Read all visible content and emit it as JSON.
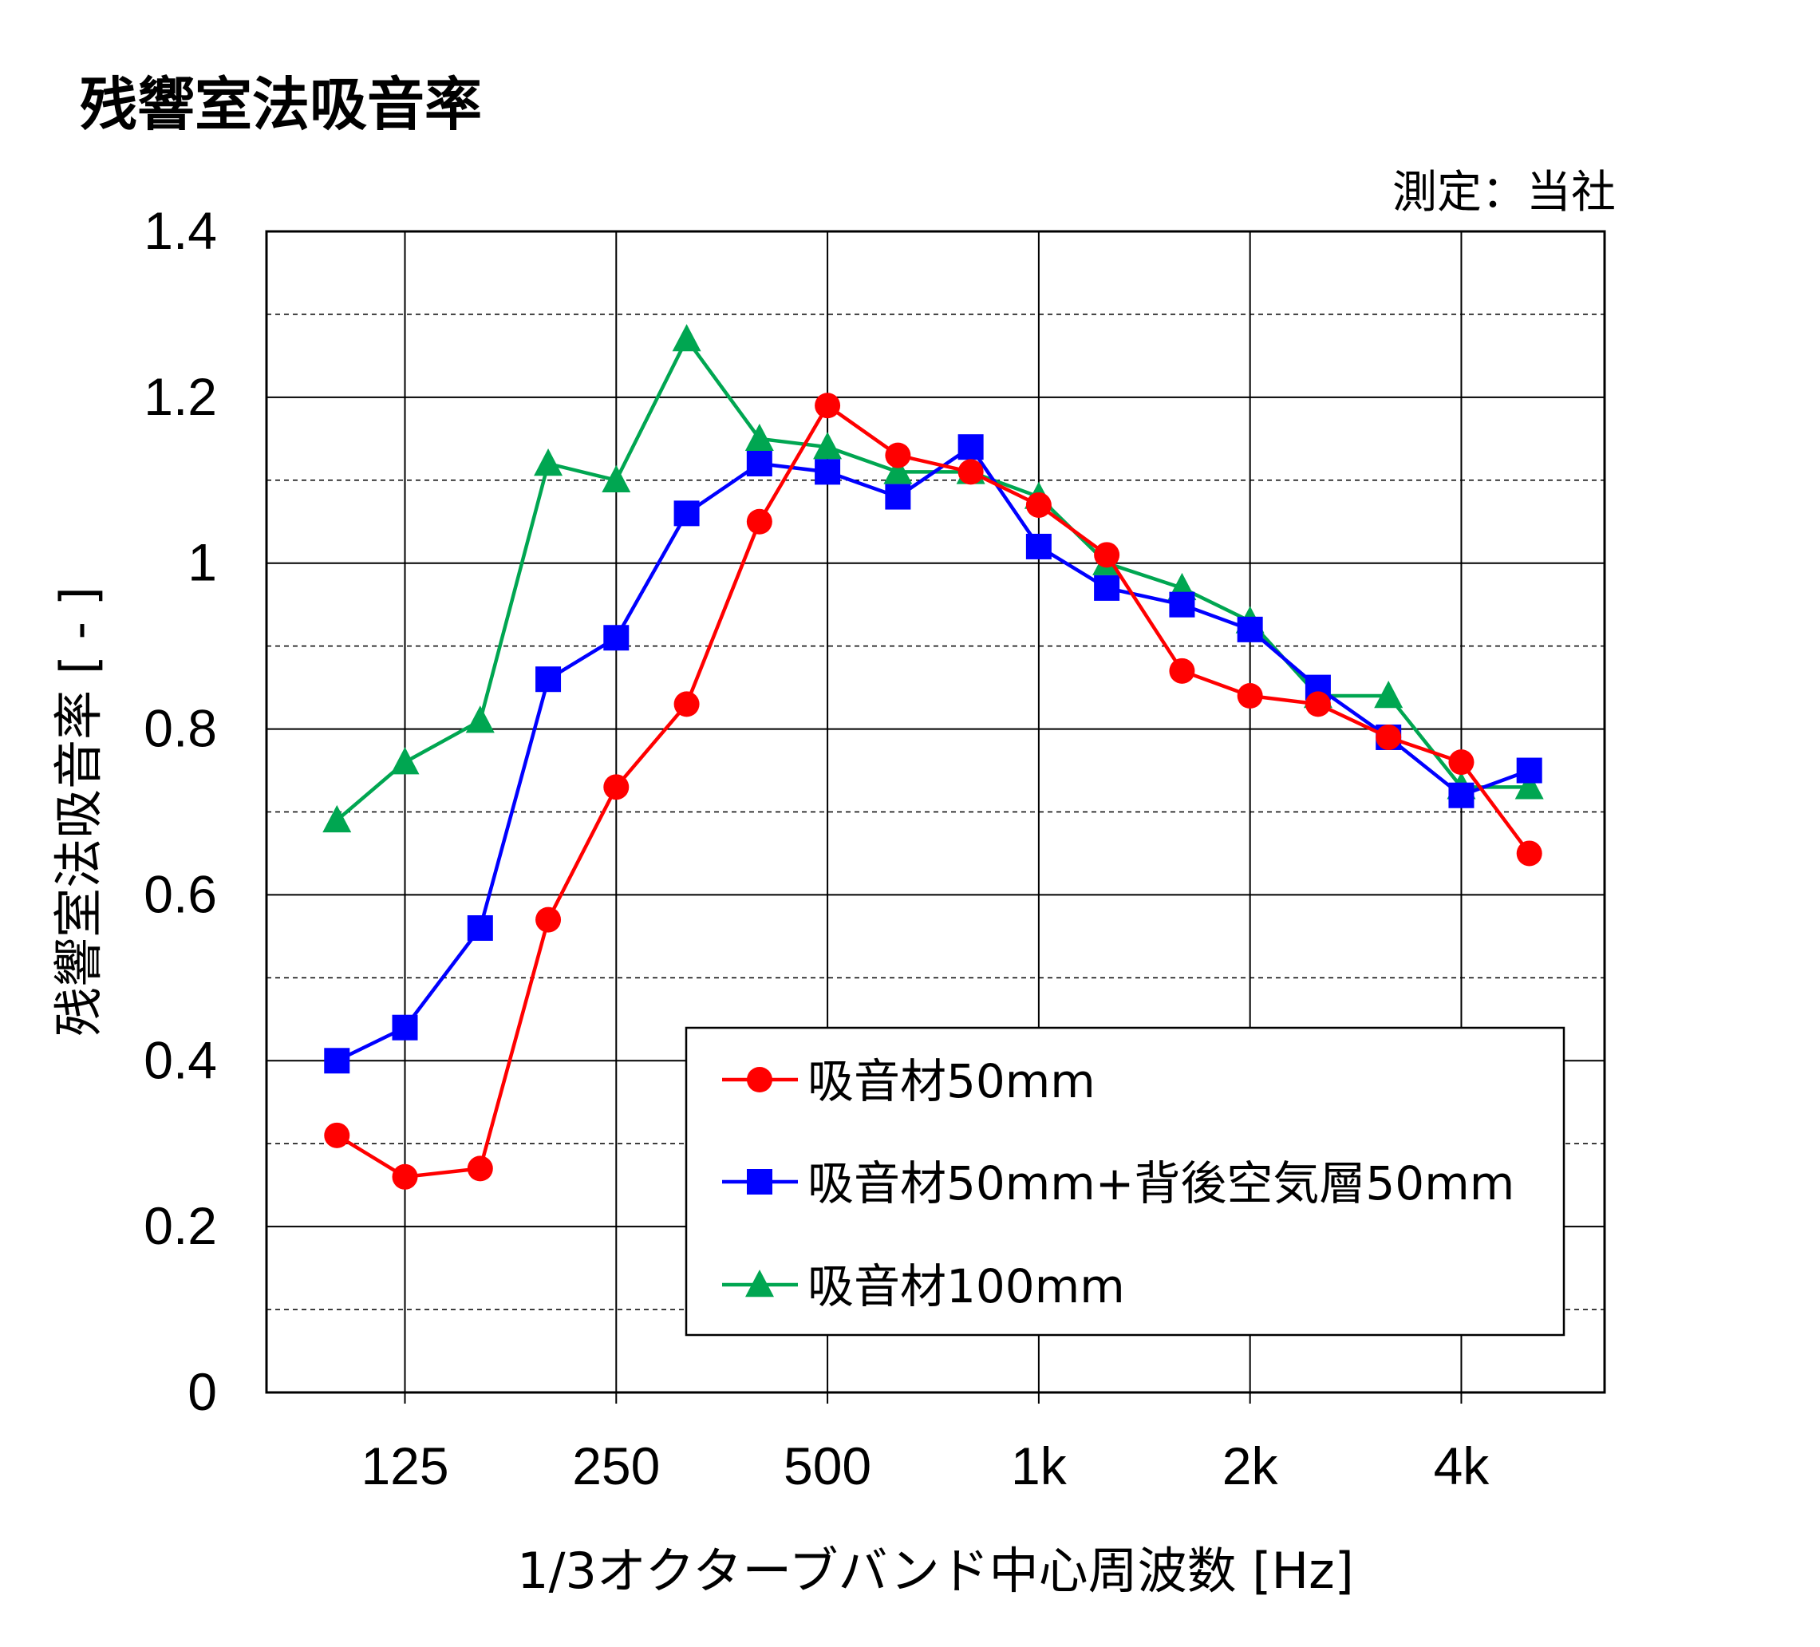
{
  "chart_data": {
    "type": "line",
    "title": "残響室法吸音率",
    "note": "測定：当社",
    "xlabel": "1/3オクターブバンド中心周波数 [Hz]",
    "ylabel": "残響室法吸音率 [ - ]",
    "x": [
      100,
      125,
      160,
      200,
      250,
      315,
      400,
      500,
      630,
      800,
      1000,
      1250,
      1600,
      2000,
      2500,
      3150,
      4000,
      5000
    ],
    "x_tick_labels": [
      {
        "x": 125,
        "label": "125"
      },
      {
        "x": 250,
        "label": "250"
      },
      {
        "x": 500,
        "label": "500"
      },
      {
        "x": 1000,
        "label": "1k"
      },
      {
        "x": 2000,
        "label": "2k"
      },
      {
        "x": 4000,
        "label": "4k"
      }
    ],
    "y_ticks": [
      0,
      0.2,
      0.4,
      0.6,
      0.8,
      1,
      1.2,
      1.4
    ],
    "y_tick_labels": [
      "0",
      "0.2",
      "0.4",
      "0.6",
      "0.8",
      "1",
      "1.2",
      "1.4"
    ],
    "ylim": [
      0,
      1.4
    ],
    "grid": true,
    "legend_position": "bottom-right",
    "series": [
      {
        "name": "吸音材50mm",
        "color": "#ff0000",
        "marker": "circle",
        "values": [
          0.31,
          0.26,
          0.27,
          0.57,
          0.73,
          0.83,
          1.05,
          1.19,
          1.13,
          1.11,
          1.07,
          1.01,
          0.87,
          0.84,
          0.83,
          0.79,
          0.76,
          0.65
        ]
      },
      {
        "name": "吸音材50mm+背後空気層50mm",
        "color": "#0000ff",
        "marker": "square",
        "values": [
          0.4,
          0.44,
          0.56,
          0.86,
          0.91,
          1.06,
          1.12,
          1.11,
          1.08,
          1.14,
          1.02,
          0.97,
          0.95,
          0.92,
          0.85,
          0.79,
          0.72,
          0.75
        ]
      },
      {
        "name": "吸音材100mm",
        "color": "#00a651",
        "marker": "triangle",
        "values": [
          0.69,
          0.76,
          0.81,
          1.12,
          1.1,
          1.27,
          1.15,
          1.14,
          1.11,
          1.11,
          1.08,
          1.0,
          0.97,
          0.93,
          0.84,
          0.84,
          0.73,
          0.73
        ]
      }
    ]
  }
}
